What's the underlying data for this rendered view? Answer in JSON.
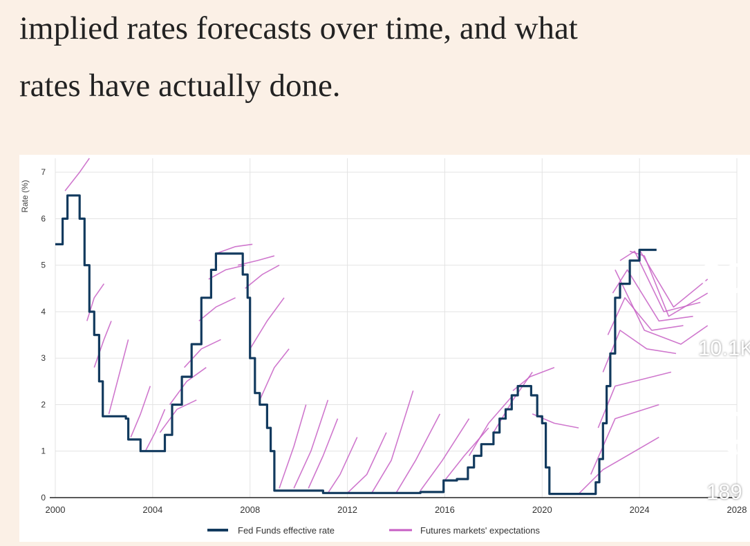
{
  "headline": {
    "line1": "implied rates forecasts over time, and what",
    "line2": "rates have actually done."
  },
  "overlay": {
    "like_count": "10.1K",
    "comment_count": "189",
    "like_icon": "heart-icon",
    "comment_icon": "comment-bubble-icon"
  },
  "colors": {
    "page_background": "#fbf0e6",
    "fed_funds": "#123a5e",
    "expectations": "#c75fc4",
    "grid": "#e3e3e3"
  },
  "chart_data": {
    "type": "line",
    "title": "",
    "xlabel": "",
    "ylabel": "Rate (%)",
    "xlim": [
      2000,
      2028
    ],
    "ylim": [
      0,
      7.3
    ],
    "x_ticks": [
      "2000",
      "2004",
      "2008",
      "2012",
      "2016",
      "2020",
      "2024",
      "2028"
    ],
    "y_ticks": [
      "0",
      "1",
      "2",
      "3",
      "4",
      "5",
      "6",
      "7"
    ],
    "grid": true,
    "legend": {
      "placement": "bottom",
      "items": [
        "Fed Funds effective rate",
        "Futures markets' expectations"
      ]
    },
    "series": [
      {
        "name": "Fed Funds effective rate",
        "x": [
          2000.0,
          2000.3,
          2000.5,
          2000.9,
          2001.0,
          2001.2,
          2001.4,
          2001.6,
          2001.8,
          2001.95,
          2002.1,
          2002.5,
          2002.9,
          2003.0,
          2003.5,
          2003.8,
          2004.0,
          2004.5,
          2004.8,
          2005.2,
          2005.6,
          2006.0,
          2006.4,
          2006.6,
          2007.0,
          2007.5,
          2007.7,
          2007.9,
          2008.0,
          2008.2,
          2008.4,
          2008.7,
          2008.85,
          2009.0,
          2010.0,
          2011.0,
          2012.0,
          2013.0,
          2014.0,
          2015.0,
          2015.95,
          2016.0,
          2016.5,
          2016.95,
          2017.2,
          2017.5,
          2017.75,
          2018.0,
          2018.25,
          2018.5,
          2018.75,
          2019.0,
          2019.3,
          2019.55,
          2019.8,
          2020.0,
          2020.15,
          2020.3,
          2021.0,
          2022.0,
          2022.2,
          2022.35,
          2022.5,
          2022.65,
          2022.8,
          2023.0,
          2023.2,
          2023.6,
          2024.0,
          2024.6,
          2024.7
        ],
        "values": [
          5.45,
          6.0,
          6.5,
          6.5,
          6.0,
          5.0,
          4.0,
          3.5,
          2.5,
          1.75,
          1.75,
          1.75,
          1.7,
          1.25,
          1.0,
          1.0,
          1.0,
          1.35,
          2.0,
          2.6,
          3.3,
          4.3,
          4.9,
          5.25,
          5.25,
          5.25,
          4.8,
          4.3,
          3.0,
          2.25,
          2.0,
          1.5,
          1.0,
          0.15,
          0.15,
          0.1,
          0.1,
          0.1,
          0.1,
          0.12,
          0.37,
          0.37,
          0.4,
          0.65,
          0.9,
          1.15,
          1.15,
          1.4,
          1.7,
          1.9,
          2.2,
          2.4,
          2.4,
          2.2,
          1.75,
          1.6,
          0.65,
          0.08,
          0.08,
          0.08,
          0.33,
          0.83,
          1.6,
          2.4,
          3.1,
          4.3,
          4.6,
          5.1,
          5.33,
          5.33,
          5.33
        ]
      },
      {
        "name": "Futures markets' expectations",
        "segments": [
          {
            "x": [
              2000.4,
              2001.0,
              2001.4
            ],
            "values": [
              6.6,
              7.0,
              7.3
            ]
          },
          {
            "x": [
              2001.3,
              2001.6,
              2002.0
            ],
            "values": [
              3.8,
              4.3,
              4.6
            ]
          },
          {
            "x": [
              2001.6,
              2002.0,
              2002.3
            ],
            "values": [
              2.8,
              3.4,
              3.8
            ]
          },
          {
            "x": [
              2002.2,
              2002.6,
              2003.0
            ],
            "values": [
              1.8,
              2.6,
              3.4
            ]
          },
          {
            "x": [
              2003.1,
              2003.5,
              2003.9
            ],
            "values": [
              1.3,
              1.8,
              2.4
            ]
          },
          {
            "x": [
              2003.7,
              2004.1,
              2004.5
            ],
            "values": [
              1.0,
              1.4,
              1.9
            ]
          },
          {
            "x": [
              2004.3,
              2005.0,
              2005.8
            ],
            "values": [
              1.4,
              1.9,
              2.1
            ]
          },
          {
            "x": [
              2004.7,
              2005.4,
              2006.2
            ],
            "values": [
              2.0,
              2.5,
              2.8
            ]
          },
          {
            "x": [
              2005.3,
              2006.0,
              2006.8
            ],
            "values": [
              2.8,
              3.2,
              3.4
            ]
          },
          {
            "x": [
              2005.9,
              2006.6,
              2007.4
            ],
            "values": [
              3.8,
              4.1,
              4.3
            ]
          },
          {
            "x": [
              2006.3,
              2007.0,
              2007.8
            ],
            "values": [
              4.7,
              4.9,
              5.0
            ]
          },
          {
            "x": [
              2006.6,
              2007.4,
              2008.1
            ],
            "values": [
              5.25,
              5.4,
              5.45
            ]
          },
          {
            "x": [
              2007.5,
              2008.3,
              2009.0
            ],
            "values": [
              5.0,
              5.1,
              5.2
            ]
          },
          {
            "x": [
              2007.8,
              2008.5,
              2009.2
            ],
            "values": [
              4.5,
              4.8,
              5.0
            ]
          },
          {
            "x": [
              2008.0,
              2008.7,
              2009.4
            ],
            "values": [
              3.2,
              3.8,
              4.3
            ]
          },
          {
            "x": [
              2008.4,
              2009.0,
              2009.6
            ],
            "values": [
              2.1,
              2.8,
              3.2
            ]
          },
          {
            "x": [
              2009.2,
              2009.8,
              2010.3
            ],
            "values": [
              0.2,
              1.1,
              2.0
            ]
          },
          {
            "x": [
              2009.8,
              2010.5,
              2011.2
            ],
            "values": [
              0.2,
              1.0,
              2.1
            ]
          },
          {
            "x": [
              2010.4,
              2011.0,
              2011.6
            ],
            "values": [
              0.2,
              0.9,
              1.7
            ]
          },
          {
            "x": [
              2011.2,
              2011.7,
              2012.4
            ],
            "values": [
              0.1,
              0.5,
              1.3
            ]
          },
          {
            "x": [
              2012.0,
              2012.8,
              2013.6
            ],
            "values": [
              0.1,
              0.5,
              1.4
            ]
          },
          {
            "x": [
              2013.0,
              2013.8,
              2014.7
            ],
            "values": [
              0.1,
              0.8,
              2.3
            ]
          },
          {
            "x": [
              2014.0,
              2014.8,
              2015.8
            ],
            "values": [
              0.1,
              0.8,
              1.8
            ]
          },
          {
            "x": [
              2015.0,
              2015.9,
              2017.0
            ],
            "values": [
              0.15,
              0.8,
              1.7
            ]
          },
          {
            "x": [
              2016.0,
              2016.8,
              2017.8
            ],
            "values": [
              0.37,
              0.9,
              1.5
            ]
          },
          {
            "x": [
              2017.0,
              2017.8,
              2018.8
            ],
            "values": [
              0.9,
              1.6,
              2.2
            ]
          },
          {
            "x": [
              2018.0,
              2018.8,
              2019.6
            ],
            "values": [
              1.4,
              2.1,
              2.7
            ]
          },
          {
            "x": [
              2018.8,
              2019.5,
              2020.5
            ],
            "values": [
              2.3,
              2.6,
              2.8
            ]
          },
          {
            "x": [
              2019.6,
              2020.5,
              2021.5
            ],
            "values": [
              1.8,
              1.6,
              1.5
            ]
          },
          {
            "x": [
              2021.5,
              2022.5,
              2024.8
            ],
            "values": [
              0.08,
              0.6,
              1.3
            ]
          },
          {
            "x": [
              2022.0,
              2023.0,
              2024.8
            ],
            "values": [
              0.5,
              1.7,
              2.0
            ]
          },
          {
            "x": [
              2022.3,
              2023.0,
              2025.3
            ],
            "values": [
              1.5,
              2.4,
              2.7
            ]
          },
          {
            "x": [
              2022.5,
              2023.2,
              2024.3,
              2025.5
            ],
            "values": [
              2.7,
              3.6,
              3.2,
              3.1
            ]
          },
          {
            "x": [
              2022.7,
              2023.4,
              2024.5,
              2025.8
            ],
            "values": [
              3.5,
              4.3,
              3.6,
              3.7
            ]
          },
          {
            "x": [
              2022.9,
              2023.5,
              2024.8,
              2026.2
            ],
            "values": [
              4.4,
              4.9,
              3.8,
              3.9
            ]
          },
          {
            "x": [
              2023.2,
              2023.8,
              2025.0,
              2026.5
            ],
            "values": [
              5.1,
              5.3,
              4.0,
              4.2
            ]
          },
          {
            "x": [
              2023.6,
              2024.2,
              2025.2,
              2026.8
            ],
            "values": [
              5.3,
              5.2,
              3.9,
              4.4
            ]
          },
          {
            "x": [
              2024.0,
              2024.6,
              2025.4,
              2026.8
            ],
            "values": [
              5.33,
              4.8,
              4.1,
              4.7
            ]
          },
          {
            "x": [
              2023.0,
              2024.2,
              2025.7,
              2026.8
            ],
            "values": [
              4.9,
              3.6,
              3.3,
              3.7
            ]
          }
        ]
      }
    ]
  }
}
